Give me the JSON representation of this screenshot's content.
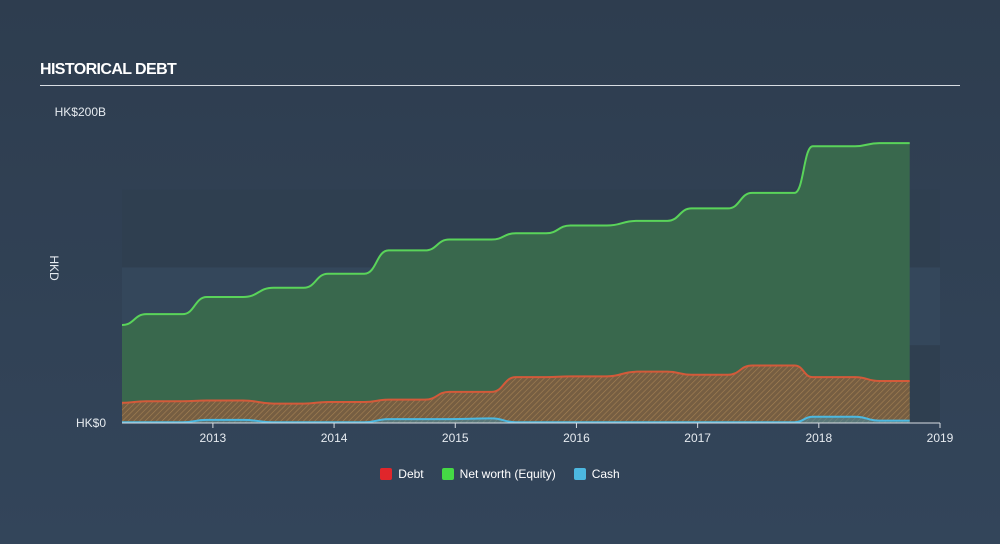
{
  "header": {
    "title": "HISTORICAL DEBT"
  },
  "chart_data": {
    "type": "area",
    "title": "HISTORICAL DEBT",
    "ylabel": "HKD",
    "xlabel": "",
    "ylim": [
      0,
      200
    ],
    "xlim": [
      2012.25,
      2019.0
    ],
    "y_tick_labels": [
      {
        "value": 0,
        "label": "HK$0"
      },
      {
        "value": 200,
        "label": "HK$200B"
      }
    ],
    "x_ticks": [
      2013,
      2014,
      2015,
      2016,
      2017,
      2018,
      2019
    ],
    "legend": [
      {
        "key": "debt",
        "label": "Debt",
        "color": "#e0262b"
      },
      {
        "key": "equity",
        "label": "Net worth (Equity)",
        "color": "#45d945"
      },
      {
        "key": "cash",
        "label": "Cash",
        "color": "#4cb8e0"
      }
    ],
    "series": [
      {
        "name": "Net worth (Equity)",
        "key": "equity",
        "color": "#5ad45a",
        "x": [
          2012.25,
          2012.45,
          2012.75,
          2012.95,
          2013.25,
          2013.5,
          2013.75,
          2013.95,
          2014.25,
          2014.45,
          2014.75,
          2014.95,
          2015.3,
          2015.5,
          2015.75,
          2015.95,
          2016.25,
          2016.5,
          2016.75,
          2016.95,
          2017.25,
          2017.45,
          2017.8,
          2017.95,
          2018.3,
          2018.5,
          2018.75
        ],
        "values": [
          63,
          70,
          70,
          81,
          81,
          87,
          87,
          96,
          96,
          111,
          111,
          118,
          118,
          122,
          122,
          127,
          127,
          130,
          130,
          138,
          138,
          148,
          148,
          178,
          178,
          180,
          180
        ]
      },
      {
        "name": "Debt",
        "key": "debt",
        "color": "#d35a3a",
        "x": [
          2012.25,
          2012.45,
          2012.75,
          2012.95,
          2013.25,
          2013.5,
          2013.75,
          2013.95,
          2014.25,
          2014.45,
          2014.75,
          2014.95,
          2015.3,
          2015.5,
          2015.75,
          2015.95,
          2016.25,
          2016.5,
          2016.75,
          2016.95,
          2017.25,
          2017.45,
          2017.8,
          2017.95,
          2018.3,
          2018.5,
          2018.75
        ],
        "values": [
          13,
          14,
          14,
          14.5,
          14.5,
          12.5,
          12.5,
          13.5,
          13.5,
          15,
          15,
          20,
          20,
          29.5,
          29.5,
          30,
          30,
          33,
          33,
          31,
          31,
          37,
          37,
          29.5,
          29.5,
          27,
          27
        ]
      },
      {
        "name": "Cash",
        "key": "cash",
        "color": "#4cb8e0",
        "x": [
          2012.25,
          2012.75,
          2012.95,
          2013.25,
          2013.5,
          2014.25,
          2014.45,
          2014.95,
          2015.3,
          2015.5,
          2017.8,
          2017.95,
          2018.3,
          2018.5,
          2018.75
        ],
        "values": [
          0.5,
          0.5,
          2,
          2,
          0.5,
          0.5,
          2.5,
          2.5,
          3,
          0.5,
          0.5,
          4,
          4,
          1.5,
          1.5
        ]
      }
    ]
  }
}
